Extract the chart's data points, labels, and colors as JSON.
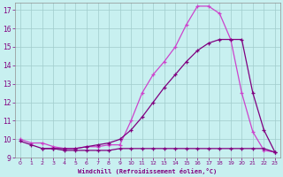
{
  "title": "",
  "xlabel": "Windchill (Refroidissement éolien,°C)",
  "ylabel": "",
  "bg_color": "#c8f0f0",
  "line_color_dark": "#800080",
  "line_color_light": "#cc44cc",
  "xlim": [
    -0.5,
    23.5
  ],
  "ylim": [
    9.0,
    17.4
  ],
  "yticks": [
    9,
    10,
    11,
    12,
    13,
    14,
    15,
    16,
    17
  ],
  "xticks": [
    0,
    1,
    2,
    3,
    4,
    5,
    6,
    7,
    8,
    9,
    10,
    11,
    12,
    13,
    14,
    15,
    16,
    17,
    18,
    19,
    20,
    21,
    22,
    23
  ],
  "series_light_x": [
    0,
    1,
    2,
    3,
    4,
    5,
    6,
    7,
    8,
    9,
    10,
    11,
    12,
    13,
    14,
    15,
    16,
    17,
    18,
    19,
    20,
    21,
    22,
    23
  ],
  "series_light_y": [
    10.0,
    9.8,
    9.8,
    9.6,
    9.5,
    9.5,
    9.6,
    9.6,
    9.7,
    9.7,
    11.0,
    12.5,
    13.5,
    14.2,
    15.0,
    16.2,
    17.2,
    17.2,
    16.8,
    15.4,
    12.5,
    10.4,
    9.4,
    9.3
  ],
  "series_dark_diag_x": [
    2,
    3,
    4,
    5,
    6,
    7,
    8,
    9,
    10,
    11,
    12,
    13,
    14,
    15,
    16,
    17,
    18,
    19,
    20,
    21,
    22,
    23
  ],
  "series_dark_diag_y": [
    9.5,
    9.5,
    9.5,
    9.5,
    9.6,
    9.7,
    9.8,
    10.0,
    10.5,
    11.2,
    12.0,
    12.8,
    13.5,
    14.2,
    14.8,
    15.2,
    15.4,
    15.4,
    15.4,
    12.5,
    10.5,
    9.3
  ],
  "series_dark_flat_x": [
    0,
    1,
    2,
    3,
    4,
    5,
    6,
    7,
    8,
    9,
    10,
    11,
    12,
    13,
    14,
    15,
    16,
    17,
    18,
    19,
    20,
    21,
    22,
    23
  ],
  "series_dark_flat_y": [
    9.9,
    9.7,
    9.5,
    9.5,
    9.4,
    9.4,
    9.4,
    9.4,
    9.4,
    9.5,
    9.5,
    9.5,
    9.5,
    9.5,
    9.5,
    9.5,
    9.5,
    9.5,
    9.5,
    9.5,
    9.5,
    9.5,
    9.5,
    9.3
  ]
}
